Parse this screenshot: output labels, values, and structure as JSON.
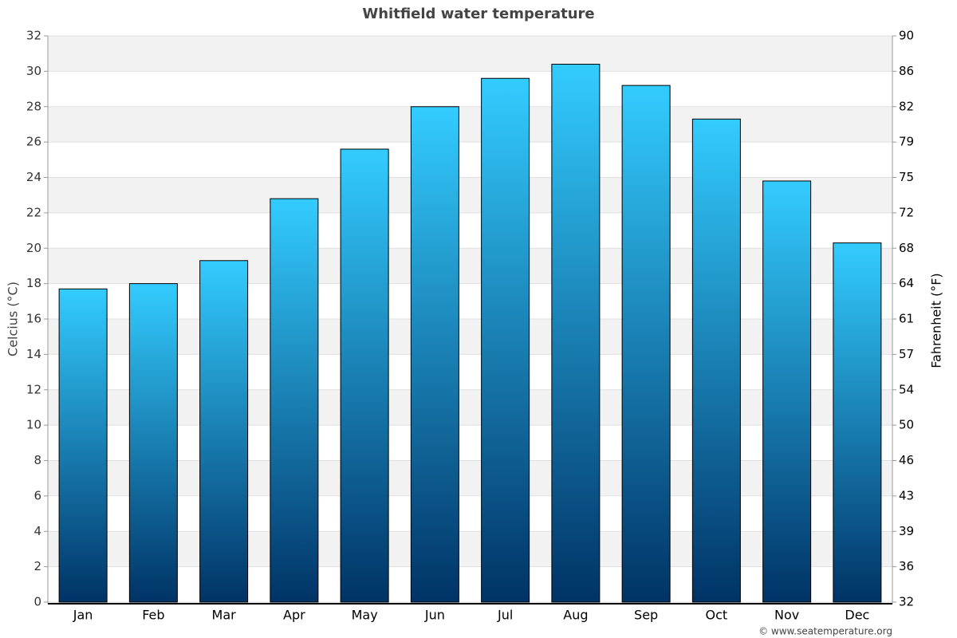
{
  "chart_data": {
    "type": "bar",
    "title": "Whitfield water temperature",
    "y_label": "Celcius (°C)",
    "y2_label": "Fahrenheit (°F)",
    "credit": "© www.seatemperature.org",
    "categories": [
      "Jan",
      "Feb",
      "Mar",
      "Apr",
      "May",
      "Jun",
      "Jul",
      "Aug",
      "Sep",
      "Oct",
      "Nov",
      "Dec"
    ],
    "values": [
      17.7,
      18.0,
      19.3,
      22.8,
      25.6,
      28.0,
      29.6,
      30.4,
      29.2,
      27.3,
      23.8,
      20.3
    ],
    "color": [
      "#33ccff",
      "#003366"
    ],
    "ylim": [
      0,
      32
    ],
    "yticks": [
      0,
      2,
      4,
      6,
      8,
      10,
      12,
      14,
      16,
      18,
      20,
      22,
      24,
      26,
      28,
      30,
      32
    ],
    "y2lim": [
      32,
      89.6
    ],
    "y2ticks": [
      32,
      {
        "value": 35.6,
        "label": "36"
      },
      {
        "value": 39.2,
        "label": "39"
      },
      {
        "value": 42.8,
        "label": "43"
      },
      {
        "value": 46.4,
        "label": "46"
      },
      50,
      {
        "value": 53.6,
        "label": "54"
      },
      {
        "value": 57.2,
        "label": "57"
      },
      {
        "value": 60.8,
        "label": "61"
      },
      {
        "value": 64.4,
        "label": "64"
      },
      68,
      {
        "value": 71.6,
        "label": "72"
      },
      {
        "value": 75.2,
        "label": "75"
      },
      {
        "value": 78.8,
        "label": "79"
      },
      {
        "value": 82.4,
        "label": "82"
      },
      86,
      {
        "value": 89.6,
        "label": "90"
      }
    ],
    "grid": true
  }
}
